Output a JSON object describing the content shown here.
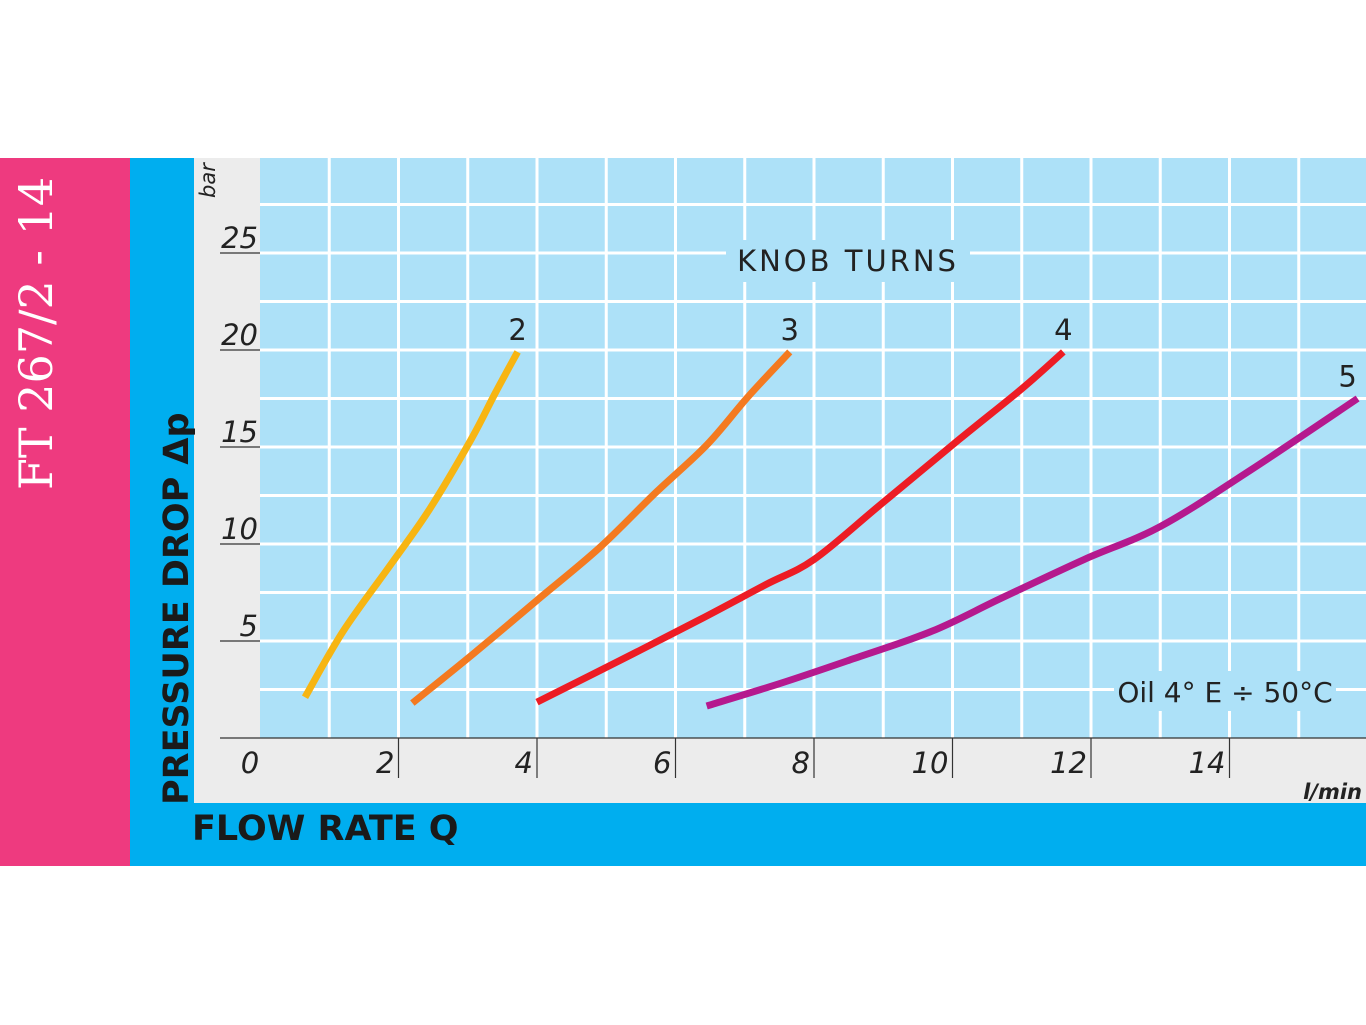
{
  "side_title": "FT 267/2 - 14",
  "colors": {
    "side_band": "#ee3a7f",
    "axis_band": "#00aeef",
    "frame": "#ececec",
    "plot_bg": "#ade1f8",
    "grid": "#ffffff"
  },
  "chart_data": {
    "type": "line",
    "title": "",
    "xlabel": "FLOW RATE Q",
    "xunit": "l/min",
    "ylabel": "PRESSURE DROP Δp",
    "yunit": "bar",
    "xlim": [
      0,
      16
    ],
    "ylim": [
      0,
      30
    ],
    "xticks": [
      "0",
      "2",
      "4",
      "6",
      "8",
      "10",
      "12",
      "14"
    ],
    "yticks": [
      "5",
      "10",
      "15",
      "20",
      "25"
    ],
    "grid": true,
    "legend_title": "KNOB TURNS",
    "annotation": "Oil 4° E ÷ 50°C",
    "series": [
      {
        "name": "2",
        "color": "#f7b512",
        "points": [
          [
            0.65,
            2.1
          ],
          [
            1.2,
            5.5
          ],
          [
            1.9,
            9.0
          ],
          [
            2.45,
            11.8
          ],
          [
            3.05,
            15.4
          ],
          [
            3.4,
            17.8
          ],
          [
            3.72,
            19.9
          ]
        ]
      },
      {
        "name": "3",
        "color": "#f47a20",
        "points": [
          [
            2.2,
            1.8
          ],
          [
            3.1,
            4.4
          ],
          [
            4.0,
            7.1
          ],
          [
            4.9,
            9.8
          ],
          [
            5.7,
            12.6
          ],
          [
            6.45,
            15.1
          ],
          [
            7.05,
            17.6
          ],
          [
            7.65,
            19.9
          ]
        ]
      },
      {
        "name": "4",
        "color": "#ed1c24",
        "points": [
          [
            4.0,
            1.85
          ],
          [
            5.2,
            4.0
          ],
          [
            6.35,
            6.1
          ],
          [
            7.3,
            7.9
          ],
          [
            8.0,
            9.2
          ],
          [
            8.95,
            12.0
          ],
          [
            10.1,
            15.4
          ],
          [
            11.0,
            18.0
          ],
          [
            11.6,
            19.9
          ]
        ]
      },
      {
        "name": "5",
        "color": "#b5198e",
        "points": [
          [
            6.45,
            1.65
          ],
          [
            7.5,
            2.8
          ],
          [
            8.5,
            4.0
          ],
          [
            9.7,
            5.5
          ],
          [
            10.7,
            7.2
          ],
          [
            11.9,
            9.2
          ],
          [
            13.0,
            10.9
          ],
          [
            14.3,
            13.8
          ],
          [
            15.85,
            17.5
          ]
        ]
      }
    ]
  }
}
